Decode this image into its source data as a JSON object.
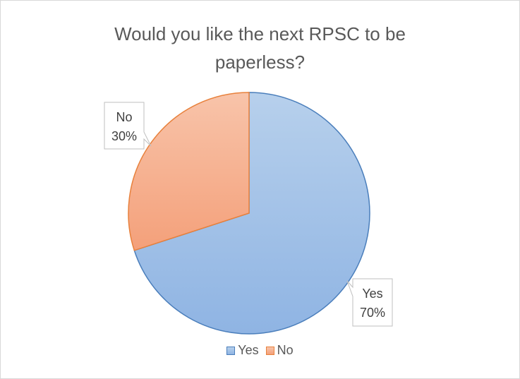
{
  "chart_data": {
    "type": "pie",
    "title": "Would you like the next RPSC to be\npaperless?",
    "categories": [
      "Yes",
      "No"
    ],
    "values": [
      70,
      30
    ],
    "data_labels": [
      {
        "category": "Yes",
        "percent": "70%"
      },
      {
        "category": "No",
        "percent": "30%"
      }
    ],
    "legend": {
      "position": "bottom",
      "entries": [
        "Yes",
        "No"
      ]
    },
    "colors": {
      "Yes": {
        "fill_light": "#b7d0ec",
        "fill_dark": "#8fb4e3",
        "stroke": "#4a7ebb"
      },
      "No": {
        "fill_light": "#f8c4aa",
        "fill_dark": "#f4a07a",
        "stroke": "#e8813c"
      }
    }
  }
}
